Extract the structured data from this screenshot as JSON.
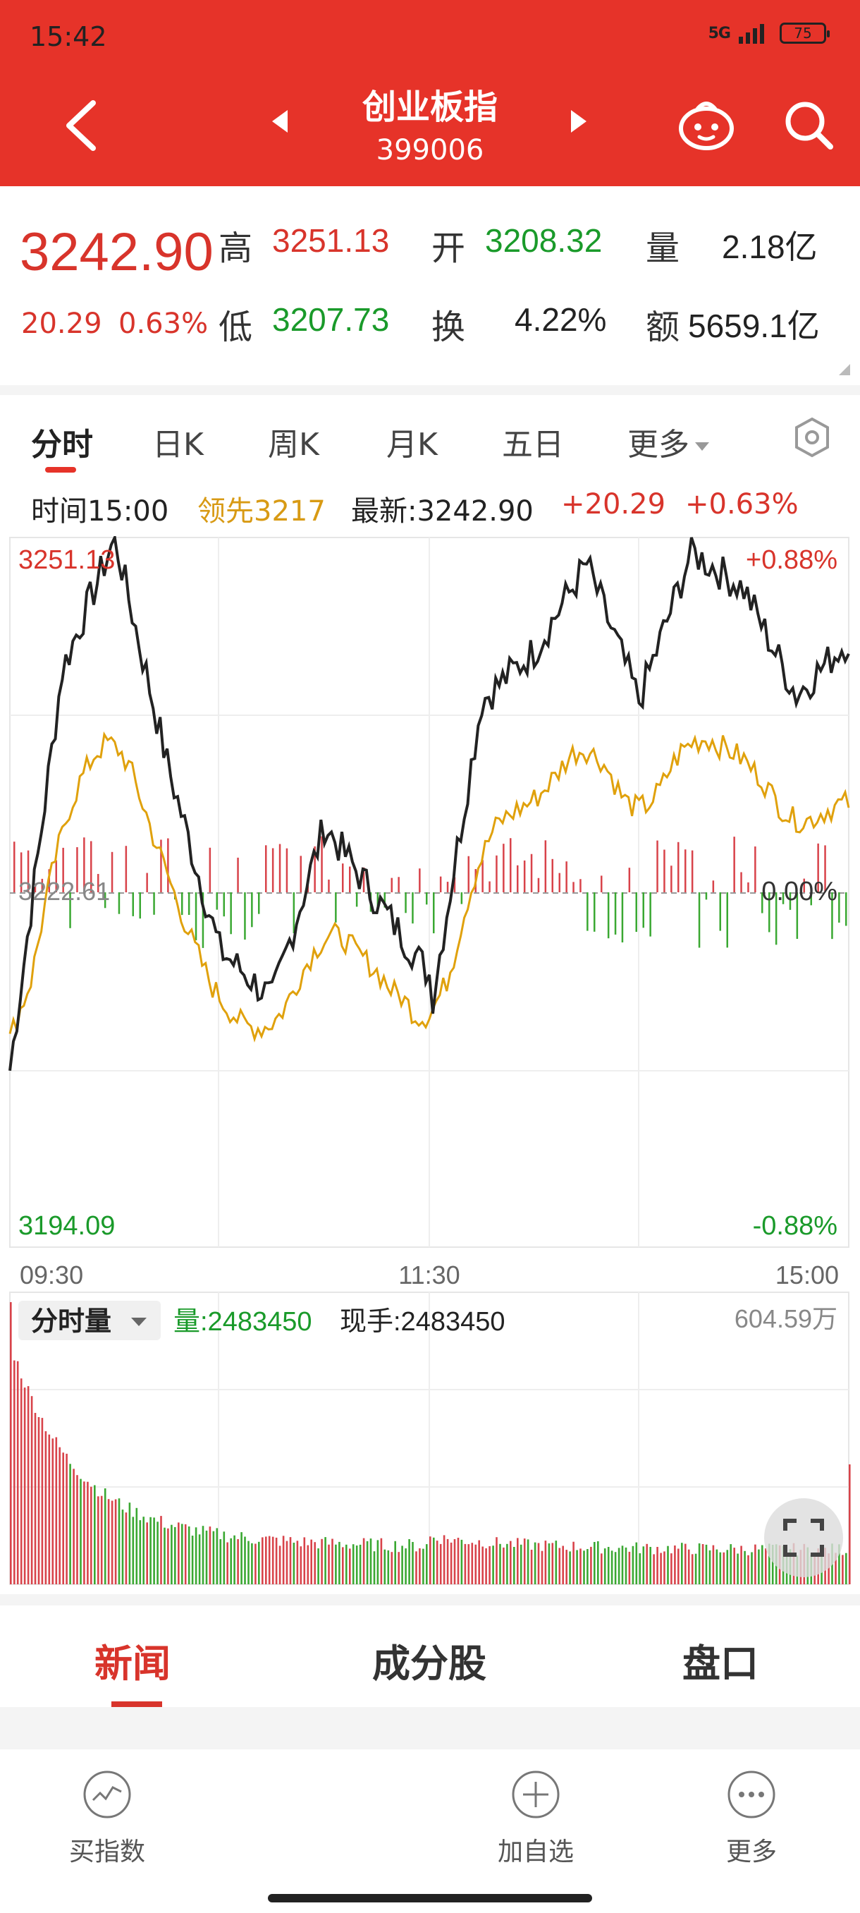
{
  "status_bar": {
    "time": "15:42",
    "network": "5G",
    "battery": "75"
  },
  "header": {
    "title": "创业板指",
    "code": "399006"
  },
  "quote": {
    "price": "3242.90",
    "change": "20.29",
    "change_pct": "0.63%",
    "high_label": "高",
    "high": "3251.13",
    "low_label": "低",
    "low": "3207.73",
    "open_label": "开",
    "open": "3208.32",
    "turnover_label": "换",
    "turnover": "4.22%",
    "volume_label": "量",
    "volume": "2.18亿",
    "amount_label": "额",
    "amount": "5659.1亿"
  },
  "tabs": {
    "items": [
      "分时",
      "日K",
      "周K",
      "月K",
      "五日",
      "更多"
    ],
    "active": "分时"
  },
  "info": {
    "time": "时间15:00",
    "lead": "领先3217",
    "latest": "最新:3242.90",
    "change": "+20.29",
    "pct": "+0.63%"
  },
  "price_chart": {
    "top_price": "3251.13",
    "bottom_price": "3194.09",
    "mid_price": "3222.61",
    "top_pct": "+0.88%",
    "bottom_pct": "-0.88%",
    "mid_pct": "0.00%",
    "time_labels": [
      "09:30",
      "11:30",
      "15:00"
    ]
  },
  "volume_chart": {
    "selector": "分时量",
    "volume": "量:2483450",
    "current": "现手:2483450",
    "max": "604.59万"
  },
  "chart_data": {
    "type": "line",
    "title": "",
    "x_range": [
      "09:30",
      "15:00"
    ],
    "ylim": [
      3194.09,
      3251.13
    ],
    "baseline": 3222.61,
    "series": [],
    "approx_index_path": [
      {
        "t": "09:30",
        "v": 3208.3
      },
      {
        "t": "09:45",
        "v": 3240.5
      },
      {
        "t": "10:00",
        "v": 3251.1
      },
      {
        "t": "10:15",
        "v": 3233.0
      },
      {
        "t": "10:30",
        "v": 3218.0
      },
      {
        "t": "10:45",
        "v": 3214.0
      },
      {
        "t": "11:00",
        "v": 3228.0
      },
      {
        "t": "11:15",
        "v": 3222.0
      },
      {
        "t": "11:30",
        "v": 3216.0
      },
      {
        "t": "13:00",
        "v": 3212.5
      },
      {
        "t": "13:15",
        "v": 3238.0
      },
      {
        "t": "13:30",
        "v": 3242.0
      },
      {
        "t": "13:45",
        "v": 3249.0
      },
      {
        "t": "14:00",
        "v": 3238.0
      },
      {
        "t": "14:15",
        "v": 3250.0
      },
      {
        "t": "14:30",
        "v": 3247.0
      },
      {
        "t": "14:45",
        "v": 3238.5
      },
      {
        "t": "15:00",
        "v": 3242.9
      }
    ]
  },
  "news_tabs": {
    "items": [
      "新闻",
      "成分股",
      "盘口"
    ],
    "active": "新闻"
  },
  "bottom_bar": {
    "buy": "买指数",
    "add": "加自选",
    "more": "更多"
  }
}
